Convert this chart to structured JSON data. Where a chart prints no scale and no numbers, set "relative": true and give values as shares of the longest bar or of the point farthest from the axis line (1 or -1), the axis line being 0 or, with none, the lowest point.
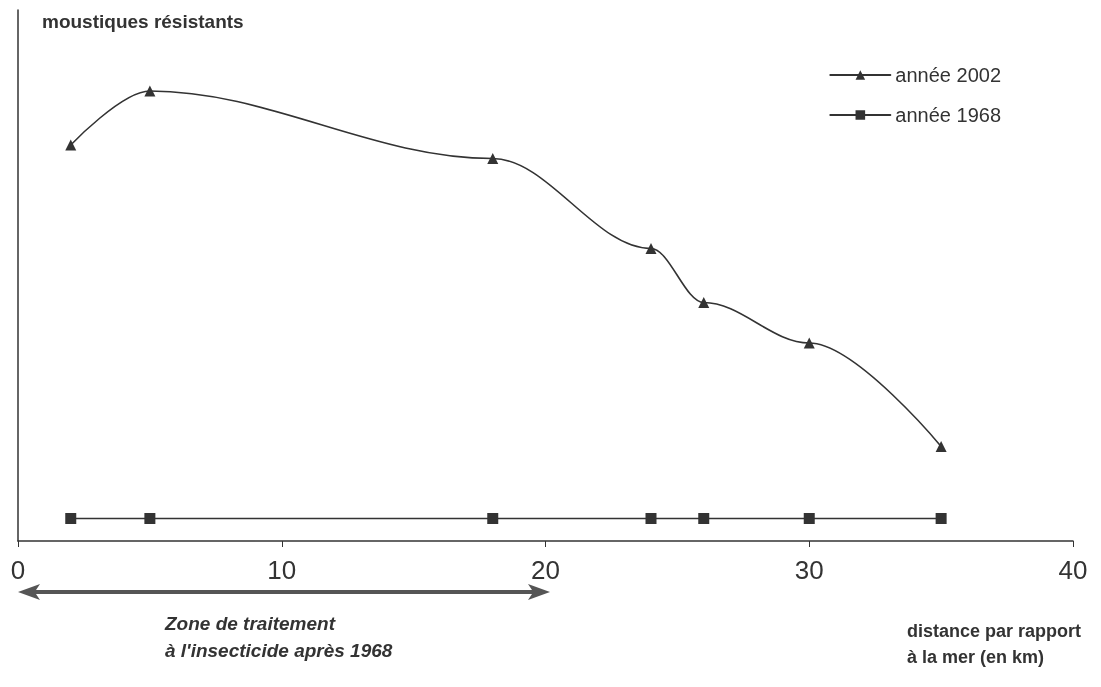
{
  "chart_data": {
    "type": "line",
    "relative": true,
    "ylabel": "moustiques résistants",
    "xlabel": "distance par rapport\nà la mer (en km)",
    "annotations": [
      "Zone de traitement\nà l'insecticide après 1968"
    ],
    "x": [
      2,
      5,
      18,
      24,
      26,
      30,
      35
    ],
    "xlim": [
      0,
      40
    ],
    "xticks": [
      0,
      10,
      20,
      30,
      40
    ],
    "series": [
      {
        "name": "année 2002",
        "color": "#333333",
        "marker": "triangle",
        "values": [
          0.88,
          1,
          0.85,
          0.65,
          0.53,
          0.44,
          0.21
        ]
      },
      {
        "name": "année 1968",
        "color": "#333333",
        "marker": "square",
        "values": [
          0.05,
          0.05,
          0.05,
          0.05,
          0.05,
          0.05,
          0.05
        ]
      }
    ],
    "line_style": "solid",
    "grid": false,
    "legend": "top right"
  }
}
